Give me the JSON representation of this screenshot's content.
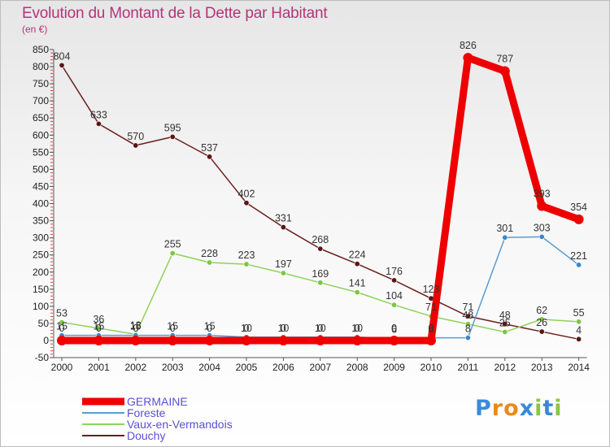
{
  "header": {
    "title": "Evolution du Montant de la Dette par Habitant",
    "subtitle": "(en €)"
  },
  "logo": {
    "text": "Proxiti",
    "letters": [
      {
        "ch": "P",
        "color": "#3a8ad8"
      },
      {
        "ch": "r",
        "color": "#e88a1a"
      },
      {
        "ch": "o",
        "color": "#e88a1a"
      },
      {
        "ch": "x",
        "color": "#3a8ad8"
      },
      {
        "ch": "i",
        "color": "#8cc63f"
      },
      {
        "ch": "t",
        "color": "#3a8ad8"
      },
      {
        "ch": "i",
        "color": "#8cc63f"
      }
    ]
  },
  "chart_data": {
    "type": "line",
    "title": "Evolution du Montant de la Dette par Habitant",
    "subtitle": "(en €)",
    "xlabel": "",
    "ylabel": "",
    "x": [
      2000,
      2001,
      2002,
      2003,
      2004,
      2005,
      2006,
      2007,
      2008,
      2009,
      2010,
      2011,
      2012,
      2013,
      2014
    ],
    "ylim": [
      -50,
      850
    ],
    "yticks": [
      -50,
      0,
      50,
      100,
      150,
      200,
      250,
      300,
      350,
      400,
      450,
      500,
      550,
      600,
      650,
      700,
      750,
      800,
      850
    ],
    "grid": false,
    "legend_position": "bottom-left",
    "series": [
      {
        "name": "Douchy",
        "color": "#6b1e1e",
        "marker": "#5a1515",
        "values": [
          804,
          633,
          570,
          595,
          537,
          402,
          331,
          268,
          224,
          176,
          123,
          71,
          48,
          26,
          4
        ],
        "labels": [
          "804",
          "633",
          "570",
          "595",
          "537",
          "402",
          "331",
          "268",
          "224",
          "176",
          "123",
          "71",
          "48",
          "26",
          "4"
        ]
      },
      {
        "name": "Vaux-en-Vermandois",
        "color": "#8fd35a",
        "marker": "#7cc742",
        "values": [
          53,
          36,
          18,
          255,
          228,
          223,
          197,
          169,
          141,
          104,
          71,
          48,
          25,
          62,
          55
        ],
        "labels": [
          "53",
          "36",
          "18",
          "255",
          "228",
          "223",
          "197",
          "169",
          "141",
          "104",
          "71",
          "48",
          "25",
          "62",
          "55"
        ]
      },
      {
        "name": "Foreste",
        "color": "#5a9bd0",
        "marker": "#3f86c4",
        "values": [
          15,
          15,
          15,
          15,
          15,
          10,
          10,
          10,
          10,
          6,
          8,
          8,
          301,
          303,
          221
        ],
        "labels": [
          "15",
          "15",
          "15",
          "15",
          "15",
          "10",
          "10",
          "10",
          "10",
          "6",
          "8",
          "8",
          "301",
          "303",
          "221"
        ]
      },
      {
        "name": "GERMAINE",
        "color": "#ee0000",
        "marker": "#ee0000",
        "values": [
          0,
          0,
          0,
          0,
          0,
          0,
          0,
          0,
          0,
          0,
          0,
          826,
          787,
          393,
          354
        ],
        "labels": [
          "0",
          "0",
          "0",
          "0",
          "0",
          "0",
          "0",
          "0",
          "0",
          "0",
          "0",
          "826",
          "787",
          "393",
          "354"
        ]
      }
    ],
    "legend": [
      {
        "name": "GERMAINE",
        "color": "#ee0000",
        "text_color": "#5b4fd6"
      },
      {
        "name": "Foreste",
        "color": "#5a9bd0",
        "text_color": "#5b4fd6"
      },
      {
        "name": "Vaux-en-Vermandois",
        "color": "#8fd35a",
        "text_color": "#5b4fd6"
      },
      {
        "name": "Douchy",
        "color": "#6b1e1e",
        "text_color": "#5b4fd6"
      }
    ]
  }
}
